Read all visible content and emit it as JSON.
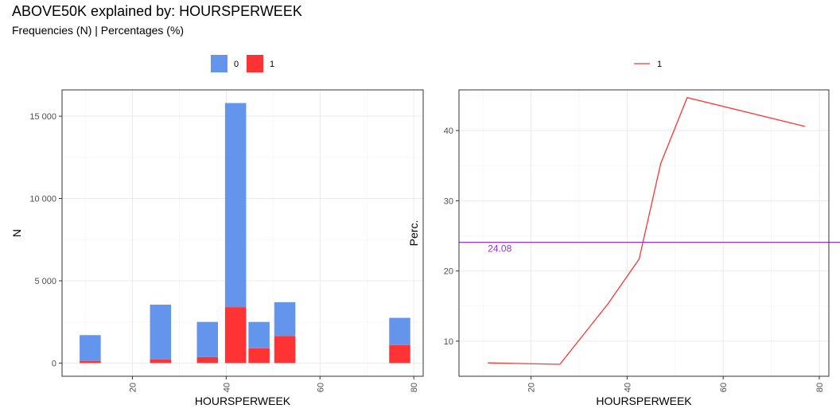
{
  "header": {
    "title": "ABOVE50K explained by: HOURSPERWEEK",
    "subtitle": "Frequencies (N) | Percentages (%)"
  },
  "chart_data": [
    {
      "type": "bar",
      "stacked": true,
      "title": "Frequencies (N)",
      "xlabel": "HOURSPERWEEK",
      "ylabel": "N",
      "xlim": [
        5,
        82
      ],
      "ylim": [
        -800,
        16600
      ],
      "x_ticks": [
        20,
        40,
        60,
        80
      ],
      "y_ticks": [
        0,
        5000,
        10000,
        15000
      ],
      "y_tick_labels": [
        "0",
        "5 000",
        "10 000",
        "15 000"
      ],
      "legend_position": "top",
      "legend": [
        "0",
        "1"
      ],
      "bar_width": 4.5,
      "x": [
        11,
        26,
        36,
        42,
        47,
        52.5,
        77
      ],
      "series": [
        {
          "name": "1",
          "color": "#ff3333",
          "values": [
            120,
            230,
            370,
            3400,
            900,
            1650,
            1100
          ]
        },
        {
          "name": "0",
          "color": "#6495ed",
          "values": [
            1580,
            3320,
            2130,
            12400,
            1600,
            2050,
            1650
          ]
        }
      ]
    },
    {
      "type": "line",
      "title": "Percentages (%)",
      "xlabel": "HOURSPERWEEK",
      "ylabel": "Perc.",
      "xlim": [
        5,
        82
      ],
      "ylim": [
        5,
        45.8
      ],
      "x_ticks": [
        20,
        40,
        60,
        80
      ],
      "y_ticks": [
        10,
        20,
        30,
        40
      ],
      "legend_position": "top",
      "legend": [
        "1"
      ],
      "series": [
        {
          "name": "1",
          "color": "#ff3333",
          "x": [
            11,
            26,
            36,
            42.5,
            47,
            52.5,
            77
          ],
          "values": [
            6.9,
            6.7,
            15.3,
            21.7,
            35.3,
            44.7,
            40.6
          ]
        }
      ],
      "reference_line": {
        "value": 24.08,
        "label": "24.08",
        "color": "#9932cc"
      }
    }
  ]
}
